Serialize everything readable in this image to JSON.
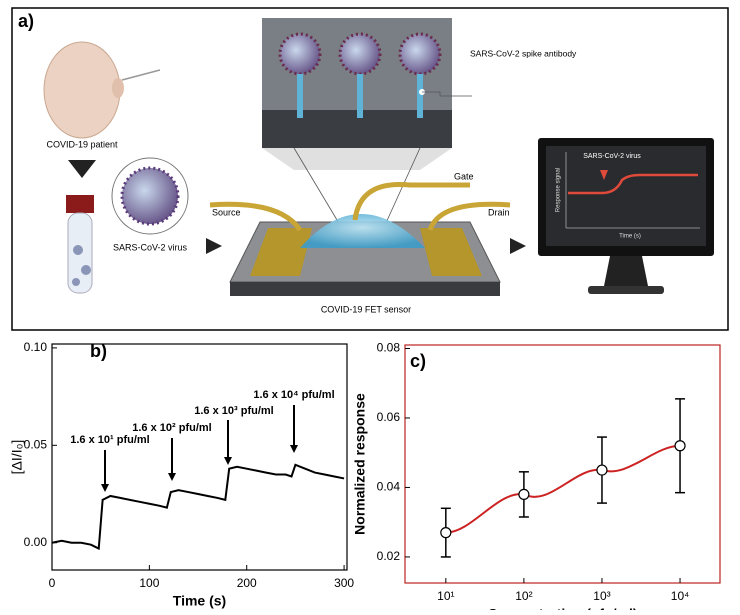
{
  "diagram": {
    "label": "a)",
    "patient": "COVID-19 patient",
    "virus": "SARS-CoV-2 virus",
    "antibody": "SARS-CoV-2 spike antibody",
    "gate": "Gate",
    "source": "Source",
    "drain": "Drain",
    "sensor": "COVID-19 FET sensor",
    "monitor": {
      "event": "SARS-CoV-2 virus",
      "ylabel": "Response signal",
      "xlabel": "Time (s)"
    }
  },
  "chart_data": [
    {
      "type": "line",
      "label": "b)",
      "xlabel": "Time (s)",
      "ylabel": "[ΔI/I₀]",
      "color": "#000000",
      "x": [
        0,
        10,
        20,
        30,
        40,
        48,
        52,
        60,
        70,
        80,
        90,
        100,
        110,
        118,
        122,
        130,
        140,
        150,
        160,
        170,
        178,
        182,
        190,
        200,
        210,
        220,
        230,
        240,
        246,
        250,
        260,
        270,
        280,
        290,
        300
      ],
      "values": [
        0.0,
        0.001,
        0.0,
        0.0,
        -0.001,
        -0.003,
        0.022,
        0.024,
        0.023,
        0.022,
        0.021,
        0.02,
        0.019,
        0.018,
        0.026,
        0.027,
        0.026,
        0.025,
        0.024,
        0.023,
        0.022,
        0.038,
        0.039,
        0.038,
        0.037,
        0.036,
        0.035,
        0.035,
        0.034,
        0.04,
        0.038,
        0.036,
        0.035,
        0.034,
        0.033
      ],
      "annotations": [
        "1.6 x 10¹ pfu/ml",
        "1.6 x 10² pfu/ml",
        "1.6 x 10³ pfu/ml",
        "1.6 x 10⁴ pfu/ml"
      ],
      "xlim": [
        0,
        303
      ],
      "ylim": [
        -0.014,
        0.102
      ],
      "xticks": [
        0,
        100,
        200,
        300
      ],
      "yticks": [
        {
          "value": 0,
          "label": "0.00"
        },
        {
          "value": 0.05,
          "label": "0.05"
        },
        {
          "value": 0.1,
          "label": "0.10"
        }
      ]
    },
    {
      "type": "scatter",
      "label": "c)",
      "xlabel": "Concentration (pfu/ml)",
      "ylabel": "Normalized response",
      "color": "#000000",
      "fit_color": "#cc2222",
      "xscale": "log",
      "x": [
        10,
        100,
        1000,
        10000
      ],
      "values": [
        0.027,
        0.038,
        0.045,
        0.052
      ],
      "errors": [
        0.007,
        0.0065,
        0.0095,
        0.0135
      ],
      "xlim": [
        3,
        32500
      ],
      "ylim": [
        0.0125,
        0.081
      ],
      "xticks": [
        {
          "value": 10,
          "label": "10¹"
        },
        {
          "value": 100,
          "label": "10²"
        },
        {
          "value": 1000,
          "label": "10³"
        },
        {
          "value": 10000,
          "label": "10⁴"
        }
      ],
      "yticks": [
        {
          "value": 0.02,
          "label": "0.02"
        },
        {
          "value": 0.04,
          "label": "0.04"
        },
        {
          "value": 0.06,
          "label": "0.06"
        },
        {
          "value": 0.08,
          "label": "0.08"
        }
      ]
    }
  ]
}
